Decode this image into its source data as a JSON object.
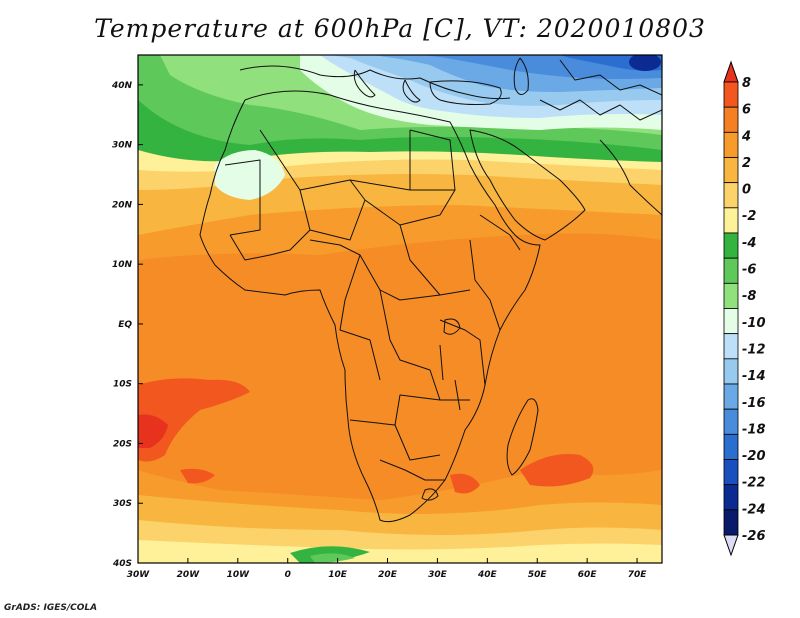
{
  "title": "Temperature at 600hPa [C], VT: 2020010803",
  "footer": "GrADS: IGES/COLA",
  "axes": {
    "x_ticks": [
      "30W",
      "20W",
      "10W",
      "0",
      "10E",
      "20E",
      "30E",
      "40E",
      "50E",
      "60E",
      "70E"
    ],
    "y_ticks": [
      "40N",
      "30N",
      "20N",
      "10N",
      "EQ",
      "10S",
      "20S",
      "30S",
      "40S"
    ]
  },
  "colorbar": {
    "labels": [
      "8",
      "6",
      "4",
      "2",
      "0",
      "-2",
      "-4",
      "-6",
      "-8",
      "-10",
      "-12",
      "-14",
      "-16",
      "-18",
      "-20",
      "-22",
      "-24",
      "-26"
    ],
    "colors": [
      "#e7321e",
      "#f2571f",
      "#f57f23",
      "#f79b2c",
      "#f8b540",
      "#fbd36a",
      "#fff09a",
      "#34b340",
      "#5ec85a",
      "#90e07e",
      "#e4fde6",
      "#bde0f8",
      "#98caf0",
      "#6aa9e6",
      "#4a8cdc",
      "#2a6fcf",
      "#1a50bd",
      "#0b2b93",
      "#0a1a6b",
      "#dcdcf5"
    ]
  },
  "regions": {
    "north_africa_band": "-4 to -8",
    "sahara_cold_pocket": "-10",
    "mediterranean_europe": "-12 to -20",
    "tropics": "2 to 4",
    "southwest_atlantic_warm": "6",
    "southern_ocean_band": "-2 to -6"
  }
}
